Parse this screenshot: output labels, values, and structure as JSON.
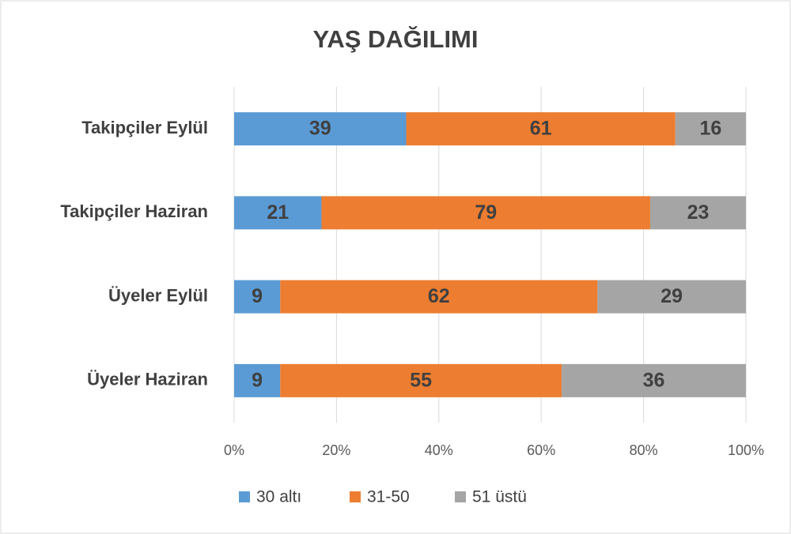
{
  "chart_data": {
    "type": "bar",
    "orientation": "horizontal",
    "stacking": "percent",
    "title": "YAŞ DAĞILIMI",
    "categories": [
      "Takipçiler Eylül",
      "Takipçiler Haziran",
      "Üyeler Eylül",
      "Üyeler Haziran"
    ],
    "series": [
      {
        "name": "30 altı",
        "color": "#5b9bd5",
        "values": [
          39,
          21,
          9,
          9
        ]
      },
      {
        "name": "31-50",
        "color": "#ed7d31",
        "values": [
          61,
          79,
          62,
          55
        ]
      },
      {
        "name": "51 üstü",
        "color": "#a5a5a5",
        "values": [
          16,
          23,
          29,
          36
        ]
      }
    ],
    "xlim": [
      0,
      100
    ],
    "xticks": [
      {
        "value": 0,
        "label": "0%"
      },
      {
        "value": 20,
        "label": "20%"
      },
      {
        "value": 40,
        "label": "40%"
      },
      {
        "value": 60,
        "label": "60%"
      },
      {
        "value": 80,
        "label": "80%"
      },
      {
        "value": 100,
        "label": "100%"
      }
    ],
    "grid": true,
    "legend": "bottom"
  }
}
